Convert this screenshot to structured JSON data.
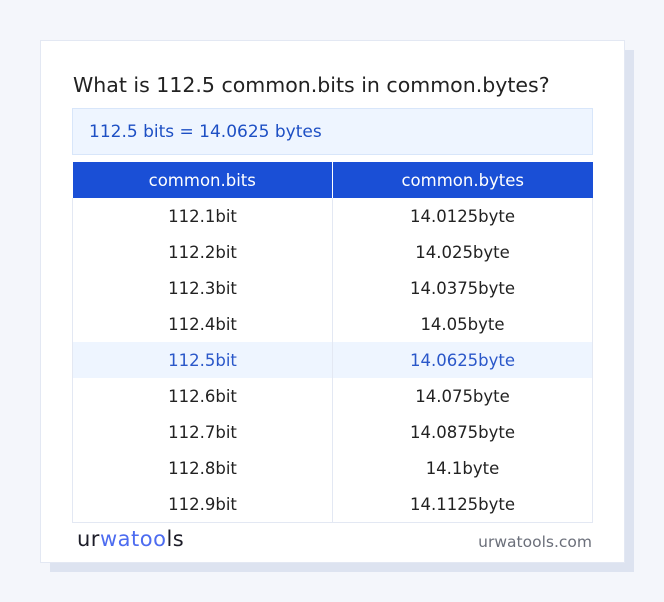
{
  "title": "What is 112.5 common.bits in common.bytes?",
  "result": "112.5 bits = 14.0625 bytes",
  "table": {
    "headers": [
      "common.bits",
      "common.bytes"
    ],
    "rows": [
      [
        "112.1bit",
        "14.0125byte"
      ],
      [
        "112.2bit",
        "14.025byte"
      ],
      [
        "112.3bit",
        "14.0375byte"
      ],
      [
        "112.4bit",
        "14.05byte"
      ],
      [
        "112.5bit",
        "14.0625byte"
      ],
      [
        "112.6bit",
        "14.075byte"
      ],
      [
        "112.7bit",
        "14.0875byte"
      ],
      [
        "112.8bit",
        "14.1byte"
      ],
      [
        "112.9bit",
        "14.1125byte"
      ]
    ],
    "highlighted_row": 4
  },
  "footer": {
    "logo": {
      "part1": "ur",
      "part2": "watoo",
      "part3": "ls"
    },
    "site": "urwatools.com"
  },
  "colors": {
    "accent": "#1a4fd6",
    "highlight_bg": "#eef5ff",
    "highlight_text": "#2a57c9"
  }
}
